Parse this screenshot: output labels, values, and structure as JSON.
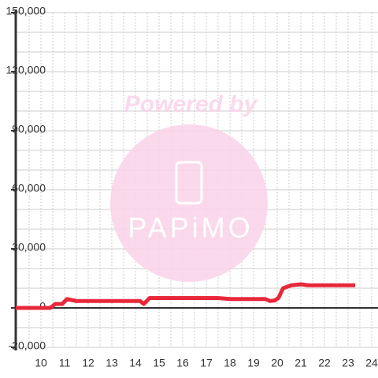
{
  "chart_data": {
    "type": "line",
    "watermark": {
      "caption": "Powered by",
      "logo": "PAPiMO"
    },
    "x": [
      8.933,
      10.4,
      10.6,
      10.9,
      11.1,
      11.5,
      12,
      13,
      14,
      14.2,
      14.35,
      14.6,
      15,
      16,
      17,
      17.5,
      18,
      19,
      19.5,
      19.7,
      19.9,
      20.05,
      20.25,
      20.6,
      21,
      21.3,
      22,
      23.3
    ],
    "series": [
      {
        "name": "value",
        "color": "#e8283a",
        "values": [
          0,
          0,
          2000,
          2000,
          4500,
          3500,
          3500,
          3500,
          3500,
          3500,
          2000,
          5000,
          5000,
          5000,
          5000,
          5000,
          4500,
          4500,
          4500,
          3500,
          3800,
          5000,
          10000,
          11500,
          12000,
          11500,
          11500,
          11500
        ]
      }
    ],
    "xlim": [
      8.933,
      24.267
    ],
    "xticks": [
      10,
      11,
      12,
      13,
      14,
      15,
      16,
      17,
      18,
      19,
      20,
      21,
      22,
      23,
      24
    ],
    "xminorticks": [
      9.5,
      10.5,
      11.5,
      12.5,
      13.5,
      14.5,
      15.5,
      16.5,
      17.5,
      18.5,
      19.5,
      20.5,
      21.5,
      22.5,
      23.5
    ],
    "ylim": [
      -20000,
      150000
    ],
    "yticks": [
      {
        "value": -20000,
        "label": "-20,000"
      },
      0,
      {
        "value": 30000,
        "label": "30,000"
      },
      {
        "value": 60000,
        "label": "60,000"
      },
      {
        "value": 90000,
        "label": "90,000"
      },
      {
        "value": 120000,
        "label": "120,000"
      },
      {
        "value": 150000,
        "label": "150,000"
      }
    ],
    "yminorticks": [
      -10000,
      10000,
      20000,
      40000,
      50000,
      70000,
      80000,
      100000,
      110000,
      130000,
      140000
    ],
    "grid": true
  }
}
